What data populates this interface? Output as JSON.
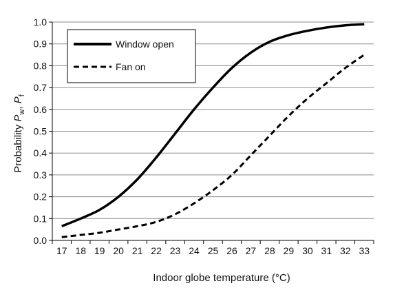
{
  "chart_data": {
    "type": "line",
    "title": "",
    "xlabel": "Indoor globe temperature (°C)",
    "ylabel": {
      "prefix": "Probability ",
      "p1": "P",
      "sub1": "w",
      "sep": ", ",
      "p2": "P",
      "sub2": "f"
    },
    "x_ticks": [
      17,
      18,
      19,
      20,
      21,
      22,
      23,
      24,
      25,
      26,
      27,
      28,
      29,
      30,
      31,
      32,
      33
    ],
    "y_ticks": [
      "0.0",
      "0.1",
      "0.2",
      "0.3",
      "0.4",
      "0.5",
      "0.6",
      "0.7",
      "0.8",
      "0.9",
      "1.0"
    ],
    "xlim": [
      16.5,
      33.5
    ],
    "ylim": [
      0,
      1
    ],
    "grid": "horizontal",
    "legend_position": "top-left",
    "x": [
      17,
      18,
      19,
      20,
      21,
      22,
      23,
      24,
      25,
      26,
      27,
      28,
      29,
      30,
      31,
      32,
      33
    ],
    "series": [
      {
        "name": "Window open",
        "style": "solid",
        "color": "#000000",
        "values": [
          0.065,
          0.1,
          0.14,
          0.2,
          0.28,
          0.38,
          0.49,
          0.6,
          0.7,
          0.79,
          0.86,
          0.91,
          0.94,
          0.96,
          0.975,
          0.985,
          0.99
        ]
      },
      {
        "name": "Fan on",
        "style": "dashed",
        "color": "#000000",
        "values": [
          0.015,
          0.025,
          0.035,
          0.05,
          0.065,
          0.085,
          0.12,
          0.17,
          0.23,
          0.3,
          0.39,
          0.48,
          0.57,
          0.65,
          0.72,
          0.79,
          0.85
        ]
      }
    ]
  }
}
